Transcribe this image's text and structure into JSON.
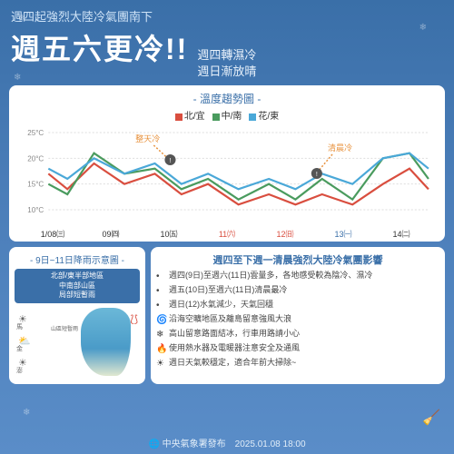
{
  "subtitle": "週四起強烈大陸冷氣團南下",
  "headline": "週五六更冷!!",
  "sub2_l1": "週四轉濕冷",
  "sub2_l2": "週日漸放晴",
  "chart": {
    "title": "- 溫度趨勢圖 -",
    "legend": [
      {
        "c": "#d94e3f",
        "t": "北/宜"
      },
      {
        "c": "#4a9b5e",
        "t": "中/南"
      },
      {
        "c": "#4aa8d8",
        "t": "花/東"
      }
    ],
    "note1": "整天冷",
    "note2": "清晨冷",
    "ylabels": [
      "25°C",
      "20°C",
      "15°C",
      "10°C"
    ],
    "ylim": [
      10,
      25
    ],
    "xlabels": [
      "1/08㈢",
      "09㈣",
      "10㈤",
      "11㈥",
      "12㈰",
      "13㈠",
      "14㈡"
    ],
    "xcolors": [
      "#333",
      "#333",
      "#333",
      "#d94e3f",
      "#d94e3f",
      "#3a6fa8",
      "#333"
    ],
    "series": {
      "north": {
        "color": "#d94e3f",
        "pts": [
          [
            0,
            17
          ],
          [
            5,
            14
          ],
          [
            12,
            19
          ],
          [
            20,
            15
          ],
          [
            28,
            17
          ],
          [
            35,
            13
          ],
          [
            42,
            15
          ],
          [
            50,
            11
          ],
          [
            58,
            13
          ],
          [
            65,
            11
          ],
          [
            72,
            13
          ],
          [
            80,
            11
          ],
          [
            88,
            15
          ],
          [
            95,
            18
          ],
          [
            100,
            14
          ]
        ]
      },
      "cs": {
        "color": "#4a9b5e",
        "pts": [
          [
            0,
            15
          ],
          [
            5,
            13
          ],
          [
            12,
            21
          ],
          [
            20,
            17
          ],
          [
            28,
            18
          ],
          [
            35,
            14
          ],
          [
            42,
            16
          ],
          [
            50,
            12
          ],
          [
            58,
            15
          ],
          [
            65,
            12
          ],
          [
            72,
            16
          ],
          [
            80,
            12
          ],
          [
            88,
            20
          ],
          [
            95,
            21
          ],
          [
            100,
            16
          ]
        ]
      },
      "east": {
        "color": "#4aa8d8",
        "pts": [
          [
            0,
            18
          ],
          [
            5,
            16
          ],
          [
            12,
            20
          ],
          [
            20,
            17
          ],
          [
            28,
            19
          ],
          [
            35,
            15
          ],
          [
            42,
            17
          ],
          [
            50,
            14
          ],
          [
            58,
            16
          ],
          [
            65,
            14
          ],
          [
            72,
            17
          ],
          [
            80,
            15
          ],
          [
            88,
            20
          ],
          [
            95,
            21
          ],
          [
            100,
            18
          ]
        ]
      }
    }
  },
  "rain": {
    "title": "- 9日~11日降雨示意圖 -",
    "box": "北部/東半部地區\n中南部山區\n局部短暫雨",
    "labels": [
      "馬",
      "金",
      "澎"
    ],
    "small": "山區短暫雨"
  },
  "forecast": {
    "title": "週四至下週一清晨強烈大陸冷氣團影響",
    "items": [
      {
        "i": "•",
        "t": "週四(9日)至週六(11日)雲量多，各地感受較為陰冷、濕冷"
      },
      {
        "i": "•",
        "t": "週五(10日)至週六(11日)清晨最冷"
      },
      {
        "i": "•",
        "t": "週日(12)水氣減少，天氣回穩"
      },
      {
        "i": "🌀",
        "t": "沿海空曠地區及離島留意強風大浪"
      },
      {
        "i": "❄",
        "t": "高山留意路面結冰，行車用路請小心"
      },
      {
        "i": "🔥",
        "t": "使用熱水器及電暖器注意安全及通風"
      },
      {
        "i": "☀",
        "t": "週日天氣較穩定，適合年前大掃除~"
      }
    ]
  },
  "footer": "🌐 中央氣象署發布　2025.01.08  18:00"
}
